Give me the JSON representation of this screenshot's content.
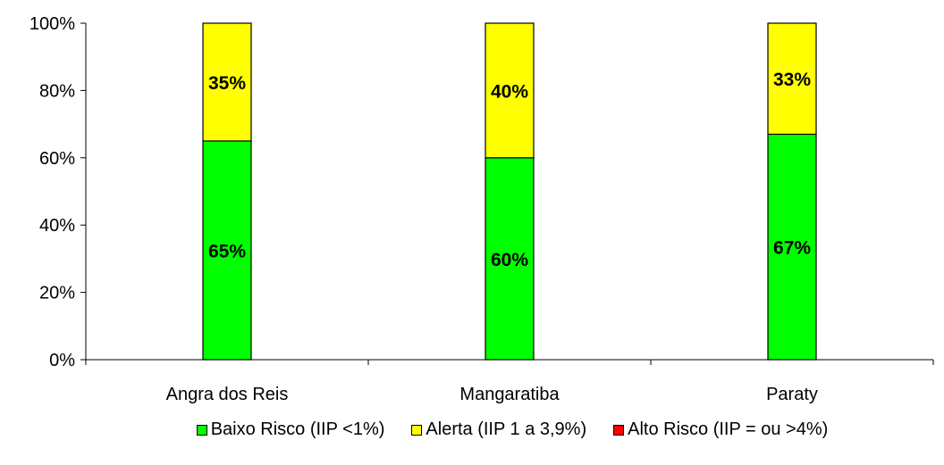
{
  "chart_data": {
    "type": "bar",
    "stacked": true,
    "categories": [
      "Angra dos Reis",
      "Mangaratiba",
      "Paraty"
    ],
    "series": [
      {
        "name": "Baixo Risco (IIP <1%)",
        "values": [
          65,
          60,
          67
        ],
        "labels": [
          "65%",
          "60%",
          "67%"
        ],
        "color": "#00FF00"
      },
      {
        "name": "Alerta (IIP 1 a 3,9%)",
        "values": [
          35,
          40,
          33
        ],
        "labels": [
          "35%",
          "40%",
          "33%"
        ],
        "color": "#FFFF00"
      },
      {
        "name": "Alto Risco (IIP = ou >4%)",
        "values": [
          0,
          0,
          0
        ],
        "labels": [
          "",
          "",
          ""
        ],
        "color": "#FF0000"
      }
    ],
    "yticks": [
      "0%",
      "20%",
      "40%",
      "60%",
      "80%",
      "100%"
    ],
    "ylim": [
      0,
      100
    ],
    "legend_position": "bottom",
    "grid": false
  }
}
